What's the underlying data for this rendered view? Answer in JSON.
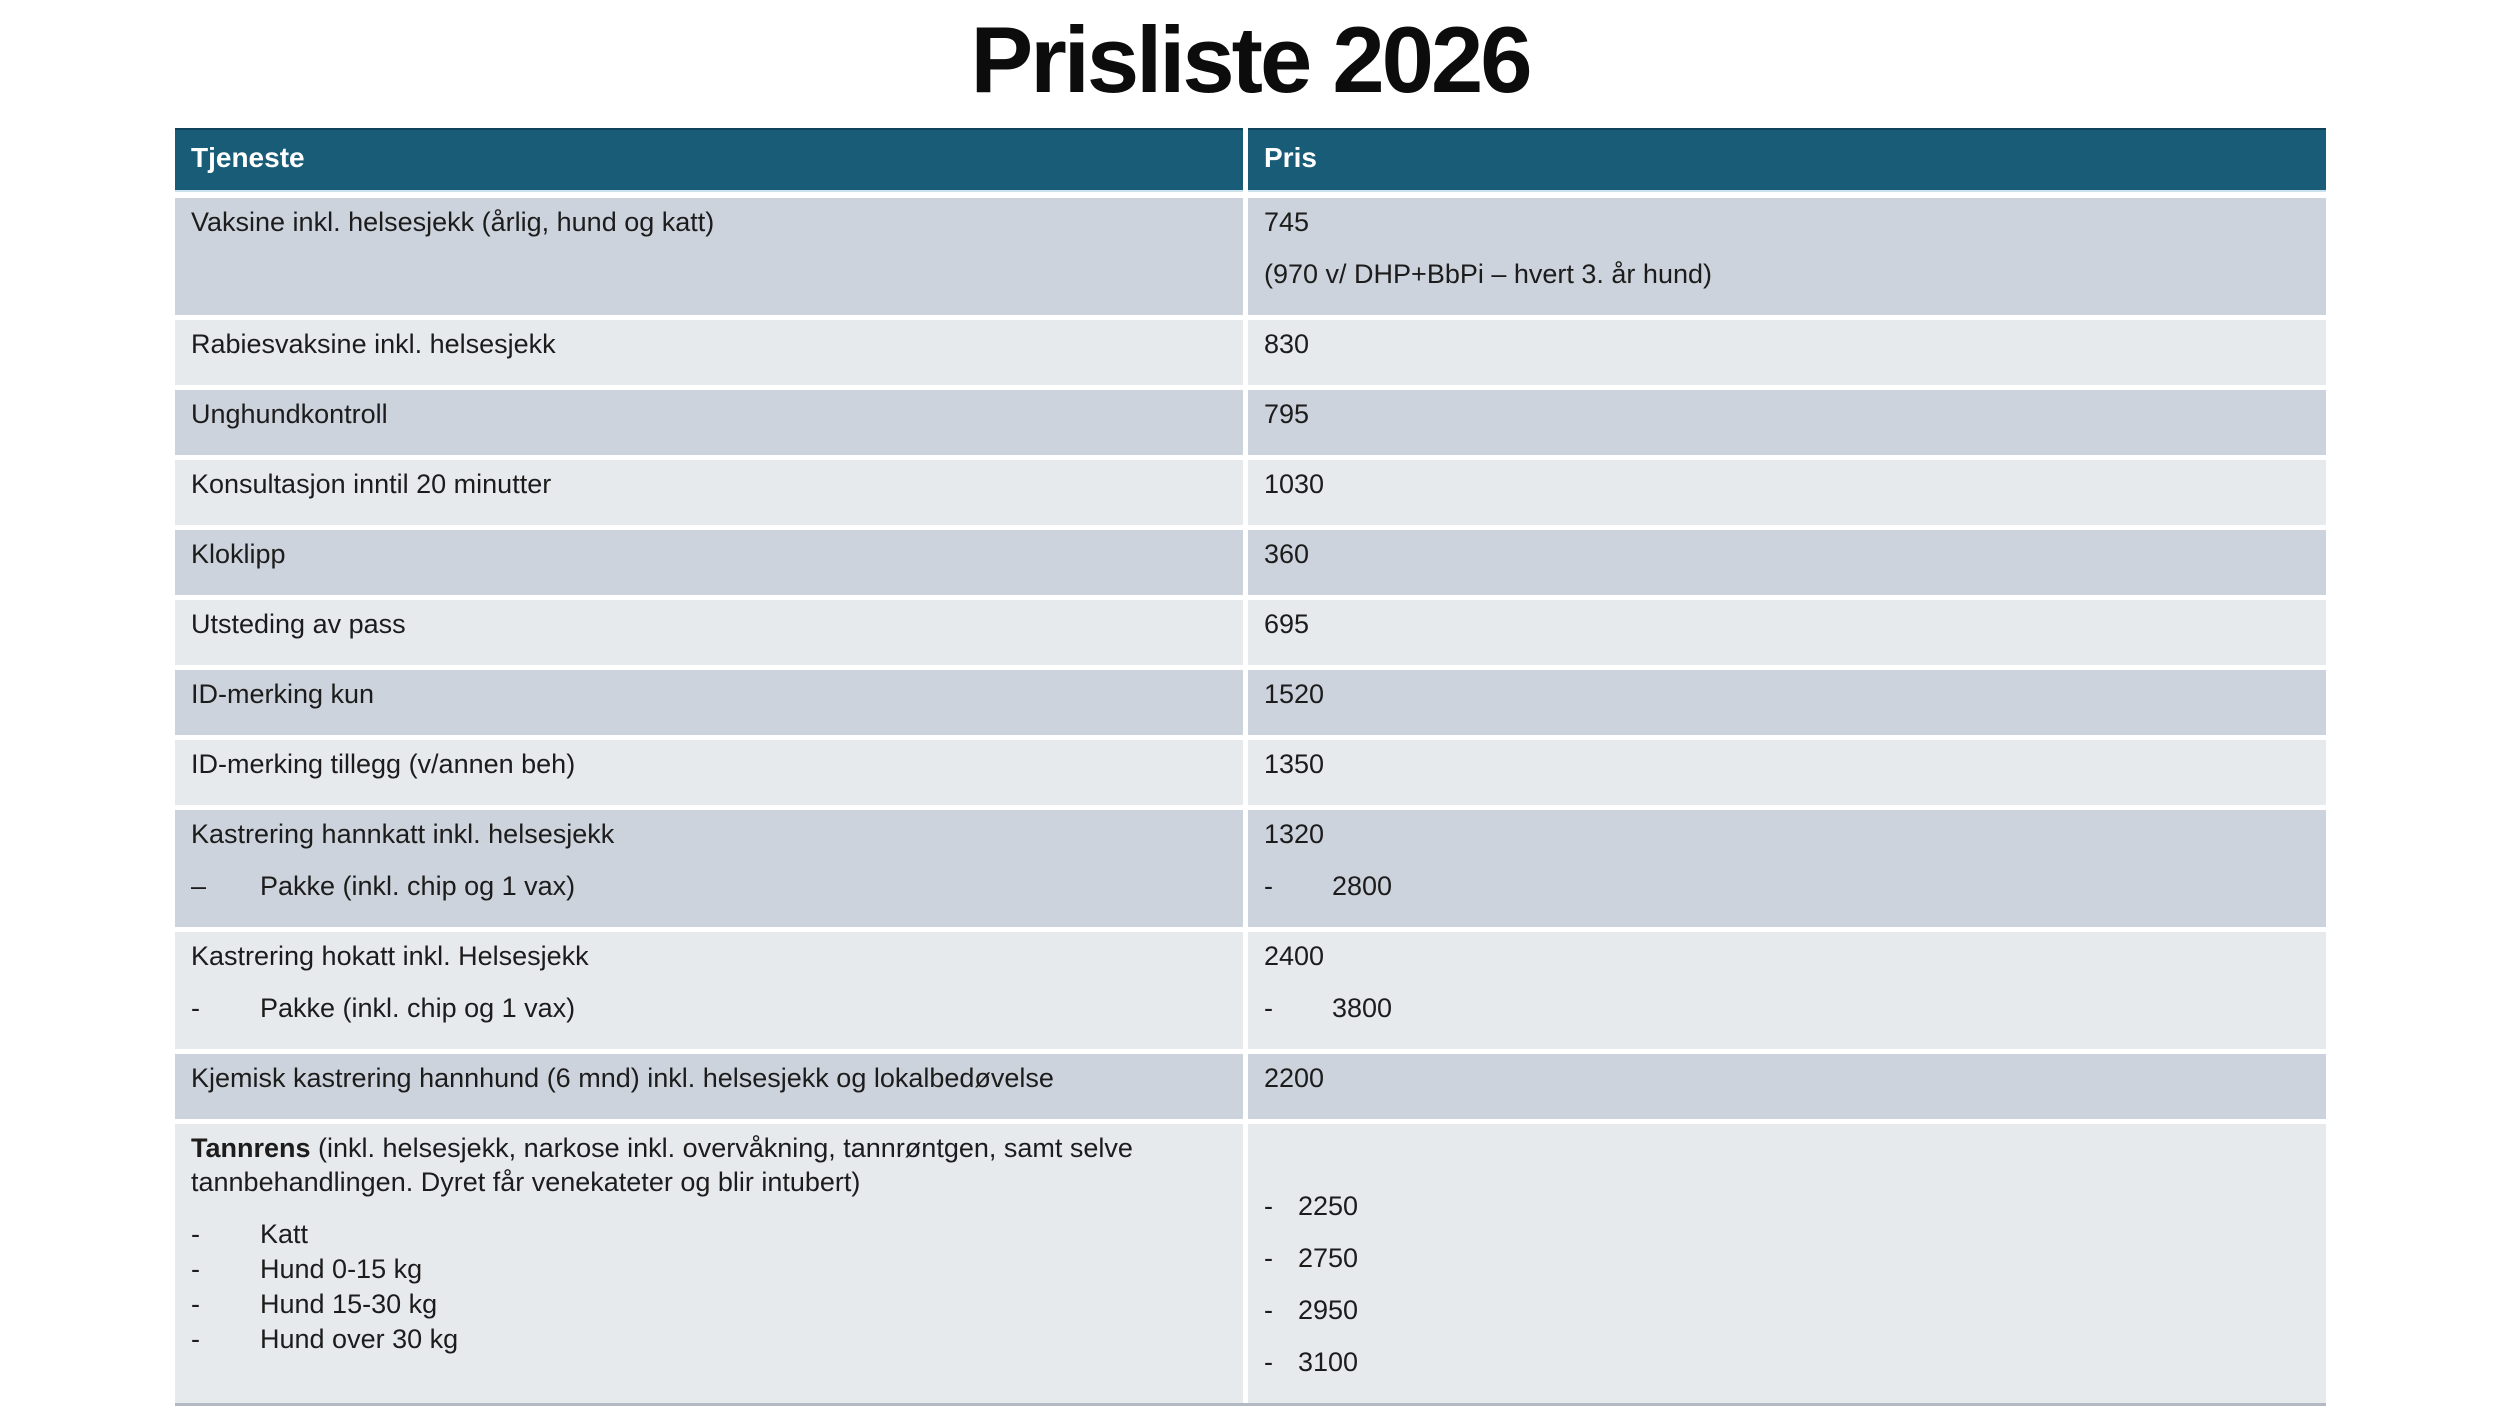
{
  "title": "Prisliste 2026",
  "colors": {
    "header_background": "#195C77",
    "header_text": "#FFFFFF",
    "row_band_dark": "#CDD3DC",
    "row_band_light": "#E7EAED",
    "separator": "#FFFFFF",
    "body_text": "#1C1C1C"
  },
  "table": {
    "columns": [
      {
        "label": "Tjeneste"
      },
      {
        "label": "Pris"
      }
    ],
    "rows": [
      {
        "service": [
          {
            "text": "Vaksine inkl. helsesjekk (årlig, hund og katt)"
          }
        ],
        "price": [
          {
            "text": "745"
          },
          {
            "text": "(970 v/ DHP+BbPi – hvert 3. år hund)"
          }
        ]
      },
      {
        "service": [
          {
            "text": "Rabiesvaksine inkl. helsesjekk"
          }
        ],
        "price": [
          {
            "text": "830"
          }
        ]
      },
      {
        "service": [
          {
            "text": "Unghundkontroll"
          }
        ],
        "price": [
          {
            "text": "795"
          }
        ]
      },
      {
        "service": [
          {
            "text": "Konsultasjon inntil 20 minutter"
          }
        ],
        "price": [
          {
            "text": "1030"
          }
        ]
      },
      {
        "service": [
          {
            "text": "Kloklipp"
          }
        ],
        "price": [
          {
            "text": "360"
          }
        ]
      },
      {
        "service": [
          {
            "text": "Utsteding av pass"
          }
        ],
        "price": [
          {
            "text": "695"
          }
        ]
      },
      {
        "service": [
          {
            "text": "ID-merking kun"
          }
        ],
        "price": [
          {
            "text": "1520"
          }
        ]
      },
      {
        "service": [
          {
            "text": "ID-merking tillegg (v/annen beh)"
          }
        ],
        "price": [
          {
            "text": "1350"
          }
        ]
      },
      {
        "service": [
          {
            "text": "Kastrering hannkatt inkl. helsesjekk"
          },
          {
            "bullet": "–",
            "tab": "service",
            "text": "Pakke (inkl. chip og 1 vax)"
          }
        ],
        "price": [
          {
            "text": "1320"
          },
          {
            "bullet": "-",
            "tab": "wide",
            "text": "2800"
          }
        ]
      },
      {
        "service": [
          {
            "text": "Kastrering hokatt inkl. Helsesjekk"
          },
          {
            "bullet": "-",
            "tab": "service",
            "text": "Pakke (inkl. chip og 1 vax)"
          }
        ],
        "price": [
          {
            "text": "2400"
          },
          {
            "bullet": "-",
            "tab": "wide",
            "text": "3800"
          }
        ]
      },
      {
        "service": [
          {
            "text": "Kjemisk kastrering hannhund (6 mnd) inkl. helsesjekk og lokalbedøvelse"
          }
        ],
        "price": [
          {
            "text": "2200"
          }
        ]
      },
      {
        "service": [
          {
            "bold": "Tannrens",
            "text": " (inkl. helsesjekk, narkose inkl. overvåkning, tannrøntgen, samt selve tannbehandlingen. Dyret får venekateter og blir intubert)"
          },
          {
            "bullet": "-",
            "tab": "service",
            "compact": true,
            "text": "Katt"
          },
          {
            "bullet": "-",
            "tab": "service",
            "compact": true,
            "text": "Hund 0-15 kg"
          },
          {
            "bullet": "-",
            "tab": "service",
            "compact": true,
            "text": "Hund 15-30 kg"
          },
          {
            "bullet": "-",
            "tab": "service",
            "compact": true,
            "text": "Hund over 30 kg"
          }
        ],
        "price": [
          {
            "spacer": true
          },
          {
            "bullet": "-",
            "tab": "narrow",
            "text": "2250"
          },
          {
            "bullet": "-",
            "tab": "narrow",
            "text": "2750"
          },
          {
            "bullet": "-",
            "tab": "narrow",
            "text": "2950"
          },
          {
            "bullet": "-",
            "tab": "narrow",
            "text": "3100"
          }
        ]
      }
    ]
  }
}
